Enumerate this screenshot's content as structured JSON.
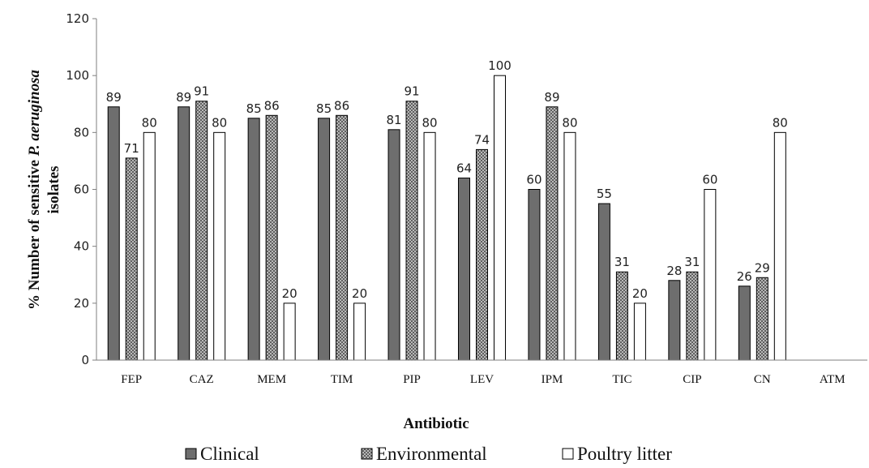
{
  "chart_data": {
    "type": "bar",
    "categories": [
      "FEP",
      "CAZ",
      "MEM",
      "TIM",
      "PIP",
      "LEV",
      "IPM",
      "TIC",
      "CIP",
      "CN",
      "ATM"
    ],
    "series": [
      {
        "name": "Clinical",
        "values": [
          89,
          89,
          85,
          85,
          81,
          64,
          60,
          55,
          28,
          26,
          null
        ],
        "labels": [
          "89",
          "89",
          "85",
          "85",
          "81",
          "64",
          "60",
          "55",
          "28",
          "26",
          ""
        ],
        "color": "#6e6e6e",
        "pattern": "solid"
      },
      {
        "name": "Environmental",
        "values": [
          71,
          91,
          86,
          86,
          91,
          74,
          89,
          31,
          31,
          29,
          null
        ],
        "labels": [
          "71",
          "91",
          "86",
          "86",
          "91",
          "74",
          "89",
          "31",
          "31",
          "29",
          ""
        ],
        "color": "#8a8a8a",
        "pattern": "crosshatch"
      },
      {
        "name": "Poultry litter",
        "values": [
          80,
          80,
          20,
          20,
          80,
          100,
          80,
          20,
          60,
          80,
          null
        ],
        "labels": [
          "80",
          "80",
          "20",
          "20",
          "80",
          "100",
          "80",
          "20",
          "60",
          "80",
          ""
        ],
        "color": "#ffffff",
        "pattern": "outline"
      }
    ],
    "xlabel": "Antibiotic",
    "ylabel_prefix": "%",
    "ylabel_line1": "Number of sensitive",
    "ylabel_italic": "P. aeruginosa",
    "ylabel_line2": "isolates",
    "ylim": [
      0,
      120
    ],
    "yticks": [
      0,
      20,
      40,
      60,
      80,
      100,
      120
    ],
    "grid": false,
    "legend_position": "bottom"
  }
}
